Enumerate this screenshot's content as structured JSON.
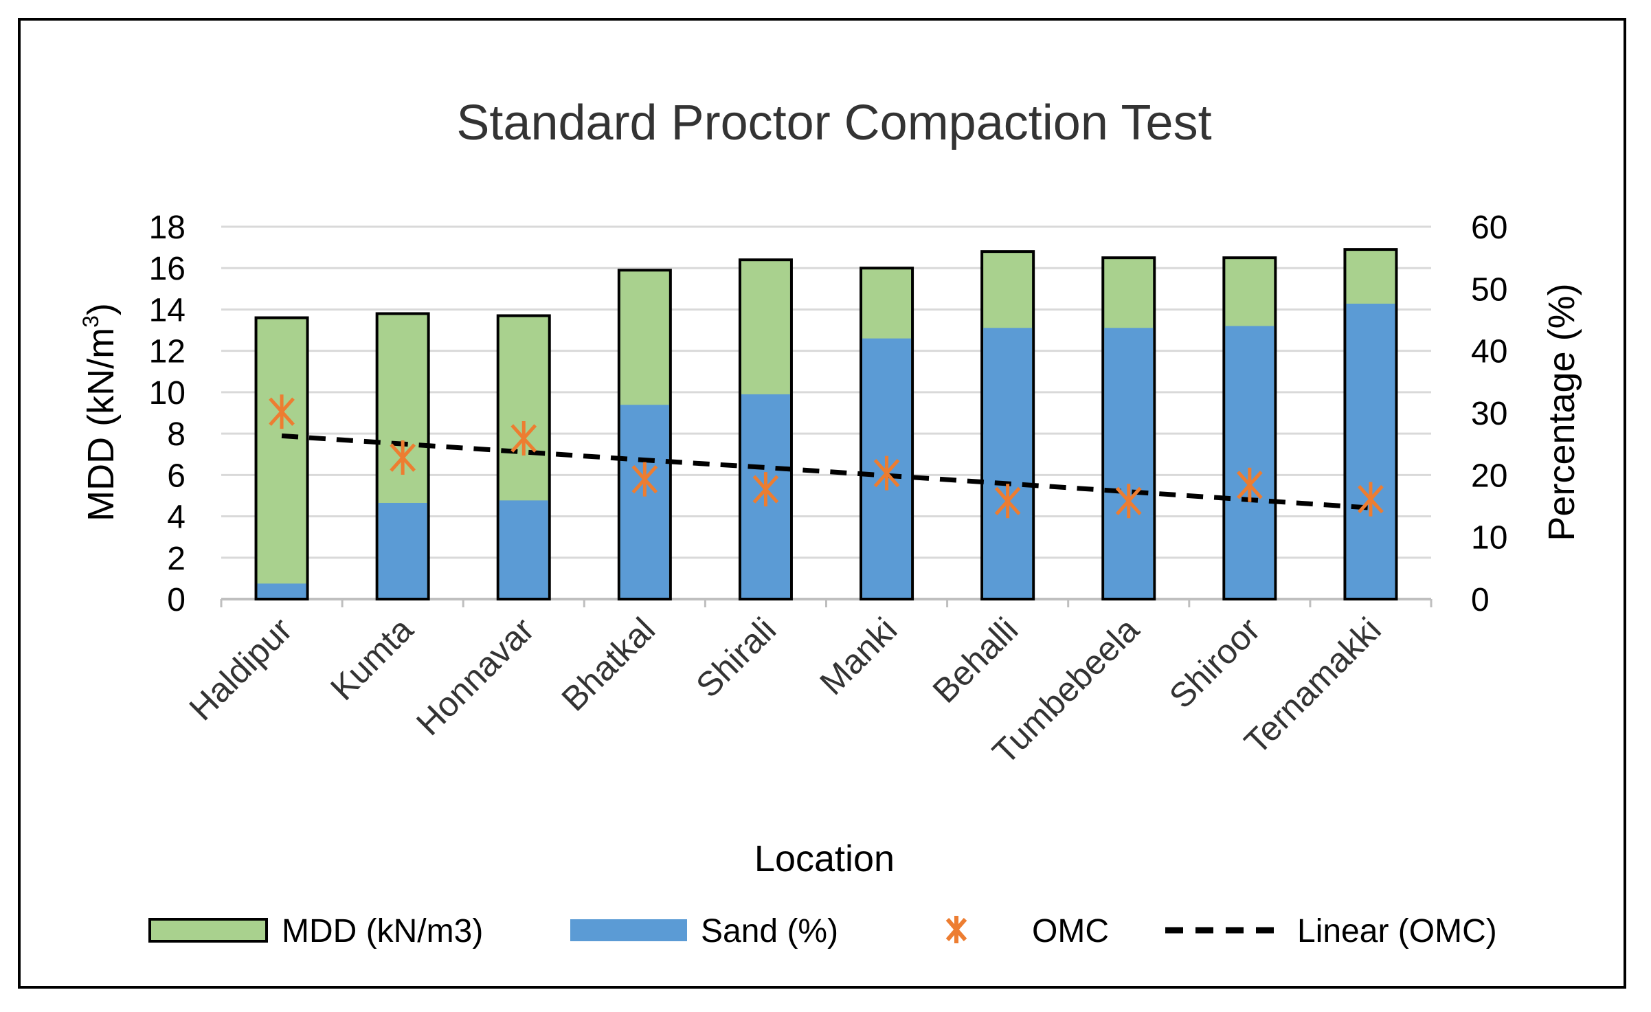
{
  "chart_data": {
    "type": "bar",
    "title": "Standard Proctor Compaction Test",
    "xlabel": "Location",
    "ylabel_left": "MDD (kN/m",
    "ylabel_left_sup": "3",
    "ylabel_left_close": ")",
    "ylabel_right": "Percentage (%)",
    "ylim_left": [
      0,
      18
    ],
    "ylim_right": [
      0,
      60
    ],
    "yticks_left": [
      "0",
      "2",
      "4",
      "6",
      "8",
      "10",
      "12",
      "14",
      "16",
      "18"
    ],
    "yticks_right": [
      "0",
      "10",
      "20",
      "30",
      "40",
      "50",
      "60"
    ],
    "categories": [
      "Haldipur",
      "Kumta",
      "Honnavar",
      "Bhatkal",
      "Shirali",
      "Manki",
      "Behalli",
      "Tumbebeela",
      "Shiroor",
      "Ternamakki"
    ],
    "series": [
      {
        "name": "MDD (kN/m3)",
        "axis": "left",
        "kind": "bar",
        "color": "#a9d18e",
        "values": [
          13.6,
          13.8,
          13.7,
          15.9,
          16.4,
          16.0,
          16.8,
          16.5,
          16.5,
          16.9
        ]
      },
      {
        "name": "Sand (%)",
        "axis": "right",
        "kind": "bar",
        "color": "#5b9bd5",
        "values": [
          2.5,
          15.5,
          15.9,
          31.3,
          33.0,
          42.0,
          43.7,
          43.7,
          44.0,
          47.6
        ]
      },
      {
        "name": "OMC",
        "axis": "right",
        "kind": "scatter",
        "color": "#ed7d31",
        "values": [
          30.2,
          22.8,
          25.9,
          19.3,
          17.7,
          20.3,
          15.8,
          15.8,
          18.4,
          16.1
        ]
      },
      {
        "name": "Linear (OMC)",
        "axis": "right",
        "kind": "trendline",
        "color": "#000000",
        "values": [
          26.3,
          25.0,
          23.7,
          22.4,
          21.2,
          19.9,
          18.6,
          17.3,
          16.0,
          14.7
        ]
      }
    ],
    "grid": true,
    "legend_position": "bottom"
  }
}
